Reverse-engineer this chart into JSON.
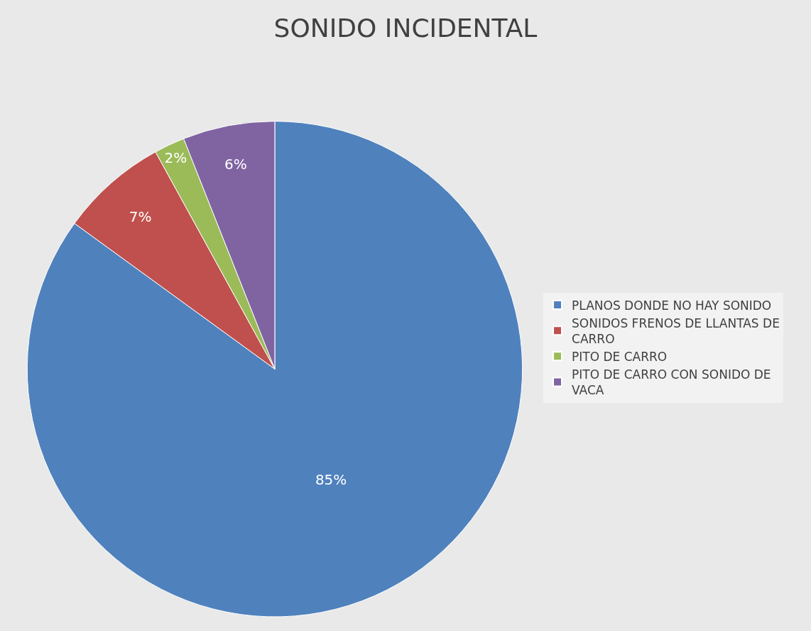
{
  "chart_data": {
    "type": "pie",
    "title": "SONIDO INCIDENTAL",
    "categories": [
      "PLANOS DONDE NO HAY SONIDO",
      "SONIDOS FRENOS DE LLANTAS DE CARRO",
      "PITO DE CARRO",
      "PITO DE CARRO CON SONIDO DE VACA"
    ],
    "values": [
      85,
      7,
      2,
      6
    ],
    "value_labels": [
      "85%",
      "7%",
      "2%",
      "6%"
    ],
    "colors": [
      "#4f81bd",
      "#c0504d",
      "#9bbb59",
      "#8064a2"
    ],
    "legend": "right"
  }
}
